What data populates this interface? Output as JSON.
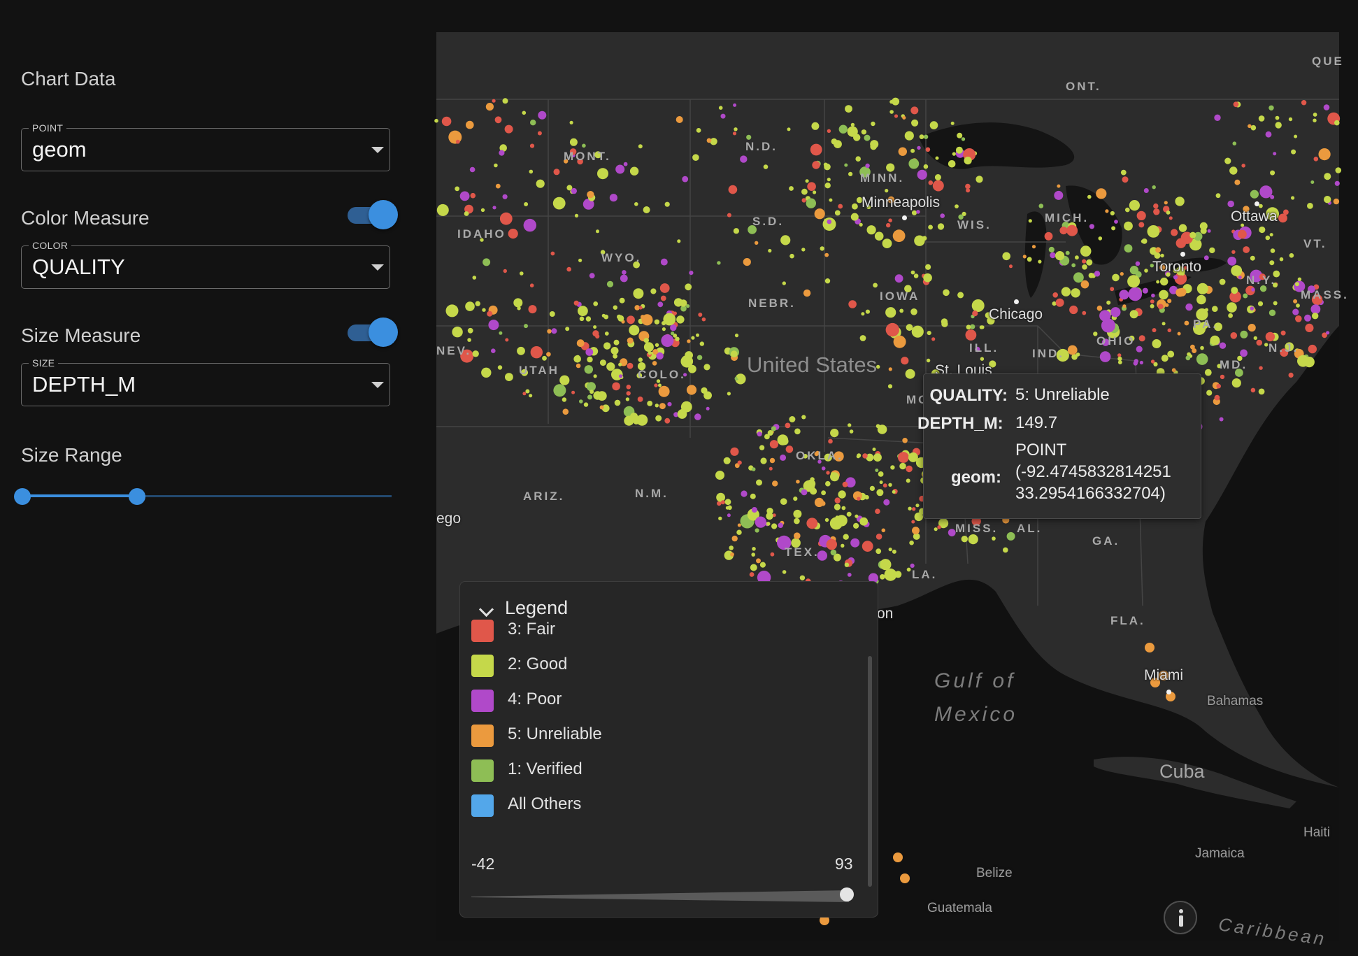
{
  "panel": {
    "title": "Chart Data",
    "point": {
      "label": "POINT",
      "value": "geom"
    },
    "color_measure": {
      "title": "Color Measure",
      "label": "COLOR",
      "value": "QUALITY",
      "enabled": true
    },
    "size_measure": {
      "title": "Size Measure",
      "label": "SIZE",
      "value": "DEPTH_M",
      "enabled": true
    },
    "size_range": {
      "title": "Size Range",
      "low_fraction": 0,
      "high_fraction": 0.31
    }
  },
  "map": {
    "places": [
      "Minneapolis",
      "Chicago",
      "Toronto",
      "Ottawa",
      "Miami",
      "Bahamas",
      "Jamaica",
      "Belize",
      "Guatemala",
      "Haiti",
      "ego",
      "on",
      "St. Louis"
    ],
    "states": [
      "ONT.",
      "QUE",
      "MONT.",
      "N.D.",
      "MINN.",
      "S.D.",
      "WIS.",
      "MICH.",
      "IDAHO",
      "WYO.",
      "VT.",
      "N.Y.",
      "NEBR.",
      "IOWA",
      "NEV.",
      "UTAH",
      "COLO.",
      "ILL.",
      "IND.",
      "OHIO",
      "PA.",
      "N.J.",
      "MASS.",
      "OKLA.",
      "ARIZ.",
      "N.M.",
      "MISS.",
      "AL.",
      "GA.",
      "FLA.",
      "TEX.",
      "LA.",
      "MO.",
      "MD."
    ],
    "country": "United States",
    "cuba": "Cuba",
    "gulf_line1": "Gulf of",
    "gulf_line2": "Mexico",
    "caribbean": "Caribbean",
    "info_icon": "info-icon"
  },
  "tooltip": {
    "rows": [
      {
        "key": "QUALITY:",
        "value": "5: Unreliable"
      },
      {
        "key": "DEPTH_M:",
        "value": "149.7"
      },
      {
        "key": "geom:",
        "value_lines": [
          "POINT",
          "(-92.4745832814251",
          "33.2954166332704)"
        ]
      }
    ]
  },
  "legend": {
    "title": "Legend",
    "items": [
      {
        "label": "3: Fair",
        "color": "#e0574a"
      },
      {
        "label": "2: Good",
        "color": "#c5d84a"
      },
      {
        "label": "4: Poor",
        "color": "#b049c9"
      },
      {
        "label": "5: Unreliable",
        "color": "#eb9a3e"
      },
      {
        "label": "1: Verified",
        "color": "#8ebe55"
      },
      {
        "label": "All Others",
        "color": "#53a7ea"
      }
    ],
    "range_min": "-42",
    "range_max": "93",
    "range_value_fraction": 1.0
  },
  "colors": {
    "background": "#121212",
    "map_land": "#2c2c2c",
    "accent": "#3b8fdf"
  }
}
